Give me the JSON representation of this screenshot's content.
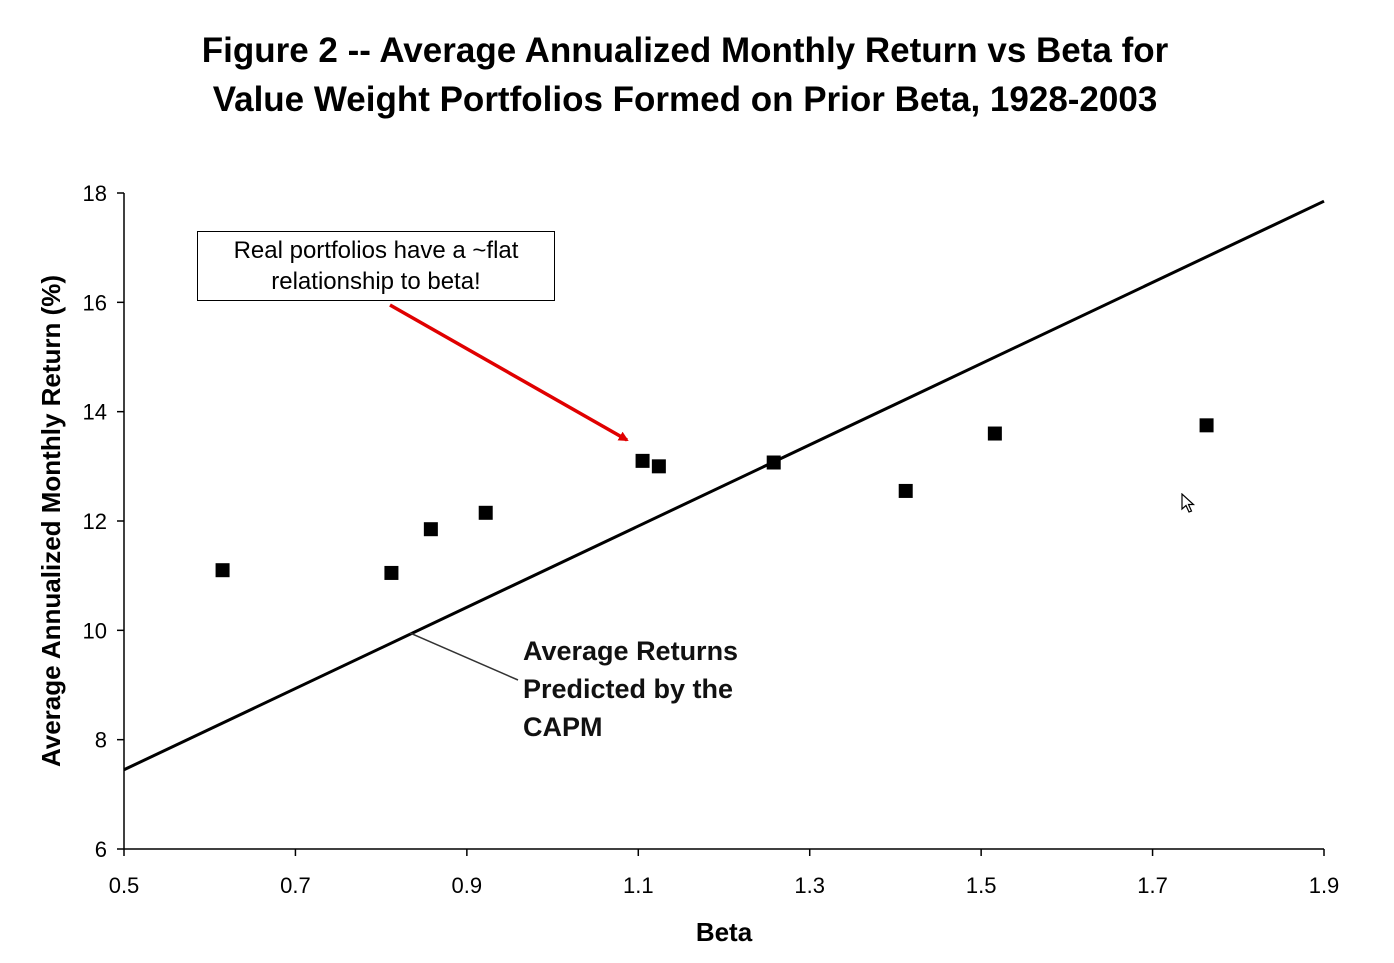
{
  "title": {
    "line1": "Figure 2 -- Average Annualized Monthly Return vs Beta for",
    "line2": "Value Weight Portfolios Formed on Prior Beta, 1928-2003"
  },
  "callout": {
    "line1": "Real portfolios have a ~flat",
    "line2": "relationship to beta!",
    "arrow_color": "#e00000"
  },
  "capm_annotation": {
    "line1": "Average Returns",
    "line2": "Predicted by the",
    "line3": "CAPM"
  },
  "chart_data": {
    "type": "scatter",
    "title": "Figure 2 -- Average Annualized Monthly Return vs Beta for Value Weight Portfolios Formed on Prior Beta, 1928-2003",
    "xlabel": "Beta",
    "ylabel": "Average Annualized Monthly Return (%)",
    "xlim": [
      0.5,
      1.9
    ],
    "ylim": [
      6,
      18
    ],
    "xticks": [
      "0.5",
      "0.7",
      "0.9",
      "1.1",
      "1.3",
      "1.5",
      "1.7",
      "1.9"
    ],
    "yticks": [
      "6",
      "8",
      "10",
      "12",
      "14",
      "16",
      "18"
    ],
    "grid": false,
    "points": [
      {
        "x": 0.615,
        "y": 11.1
      },
      {
        "x": 0.812,
        "y": 11.05
      },
      {
        "x": 0.858,
        "y": 11.85
      },
      {
        "x": 0.922,
        "y": 12.15
      },
      {
        "x": 1.105,
        "y": 13.1
      },
      {
        "x": 1.124,
        "y": 13.0
      },
      {
        "x": 1.258,
        "y": 13.07
      },
      {
        "x": 1.412,
        "y": 12.55
      },
      {
        "x": 1.516,
        "y": 13.6
      },
      {
        "x": 1.763,
        "y": 13.75
      }
    ],
    "capm_line": {
      "x": [
        0.5,
        1.9
      ],
      "y": [
        7.45,
        17.85
      ]
    },
    "marker_color": "#000000",
    "line_color": "#000000"
  }
}
